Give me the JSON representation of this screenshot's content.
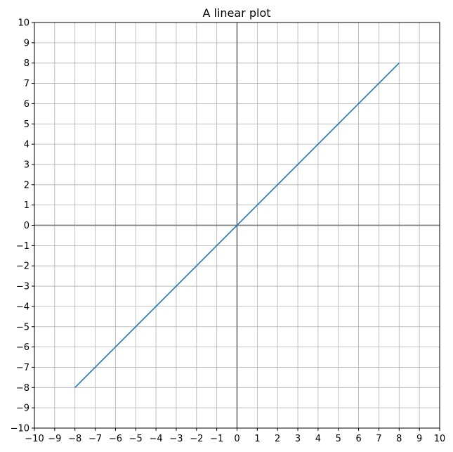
{
  "chart_data": {
    "type": "line",
    "title": "A linear plot",
    "xlabel": "",
    "ylabel": "",
    "xlim": [
      -10,
      10
    ],
    "ylim": [
      -10,
      10
    ],
    "xticks": [
      -10,
      -9,
      -8,
      -7,
      -6,
      -5,
      -4,
      -3,
      -2,
      -1,
      0,
      1,
      2,
      3,
      4,
      5,
      6,
      7,
      8,
      9,
      10
    ],
    "yticks": [
      -10,
      -9,
      -8,
      -7,
      -6,
      -5,
      -4,
      -3,
      -2,
      -1,
      0,
      1,
      2,
      3,
      4,
      5,
      6,
      7,
      8,
      9,
      10
    ],
    "grid": true,
    "axis_lines_at_zero": true,
    "series": [
      {
        "x": [
          -8,
          8
        ],
        "y": [
          -8,
          8
        ],
        "color": "#1f77b4"
      }
    ],
    "colors": {
      "grid": "#b0b0b0",
      "zero_axes": "#808080",
      "frame": "#000000"
    }
  }
}
